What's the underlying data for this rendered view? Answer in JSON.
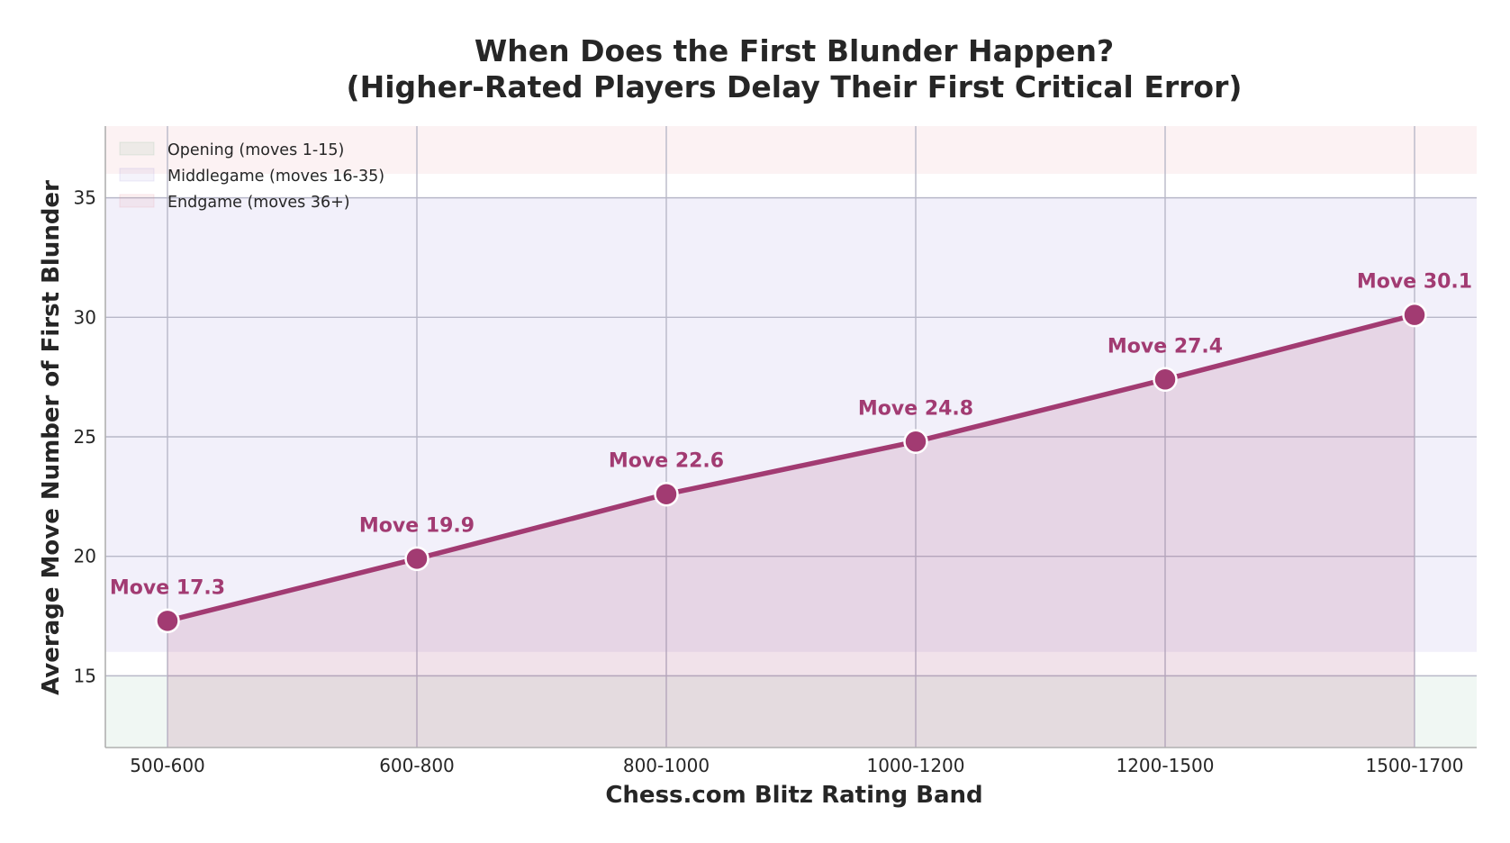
{
  "chart_data": {
    "type": "line",
    "title_line1": "When Does the First Blunder Happen?",
    "title_line2": "(Higher-Rated Players Delay Their First Critical Error)",
    "xlabel": "Chess.com Blitz Rating Band",
    "ylabel": "Average Move Number of First Blunder",
    "categories": [
      "500-600",
      "600-800",
      "800-1000",
      "1000-1200",
      "1200-1500",
      "1500-1700"
    ],
    "series": [
      {
        "values": [
          17.3,
          19.9,
          22.6,
          24.8,
          27.4,
          30.1
        ],
        "color": "#A23B72"
      }
    ],
    "data_labels": [
      "Move 17.3",
      "Move 19.9",
      "Move 22.6",
      "Move 24.8",
      "Move 27.4",
      "Move 30.1"
    ],
    "ylim": [
      12,
      38
    ],
    "yticks": [
      15,
      20,
      25,
      30,
      35
    ],
    "grid": true,
    "legend_position": "top-left",
    "phase_bands": [
      {
        "label": "Opening (moves 1-15)",
        "from": 1,
        "to": 15,
        "color": "#2E8B57"
      },
      {
        "label": "Middlegame (moves 16-35)",
        "from": 16,
        "to": 35,
        "color": "#6A5ACD"
      },
      {
        "label": "Endgame (moves 36+)",
        "from": 36,
        "to": 38,
        "color": "#E8909E"
      }
    ]
  }
}
